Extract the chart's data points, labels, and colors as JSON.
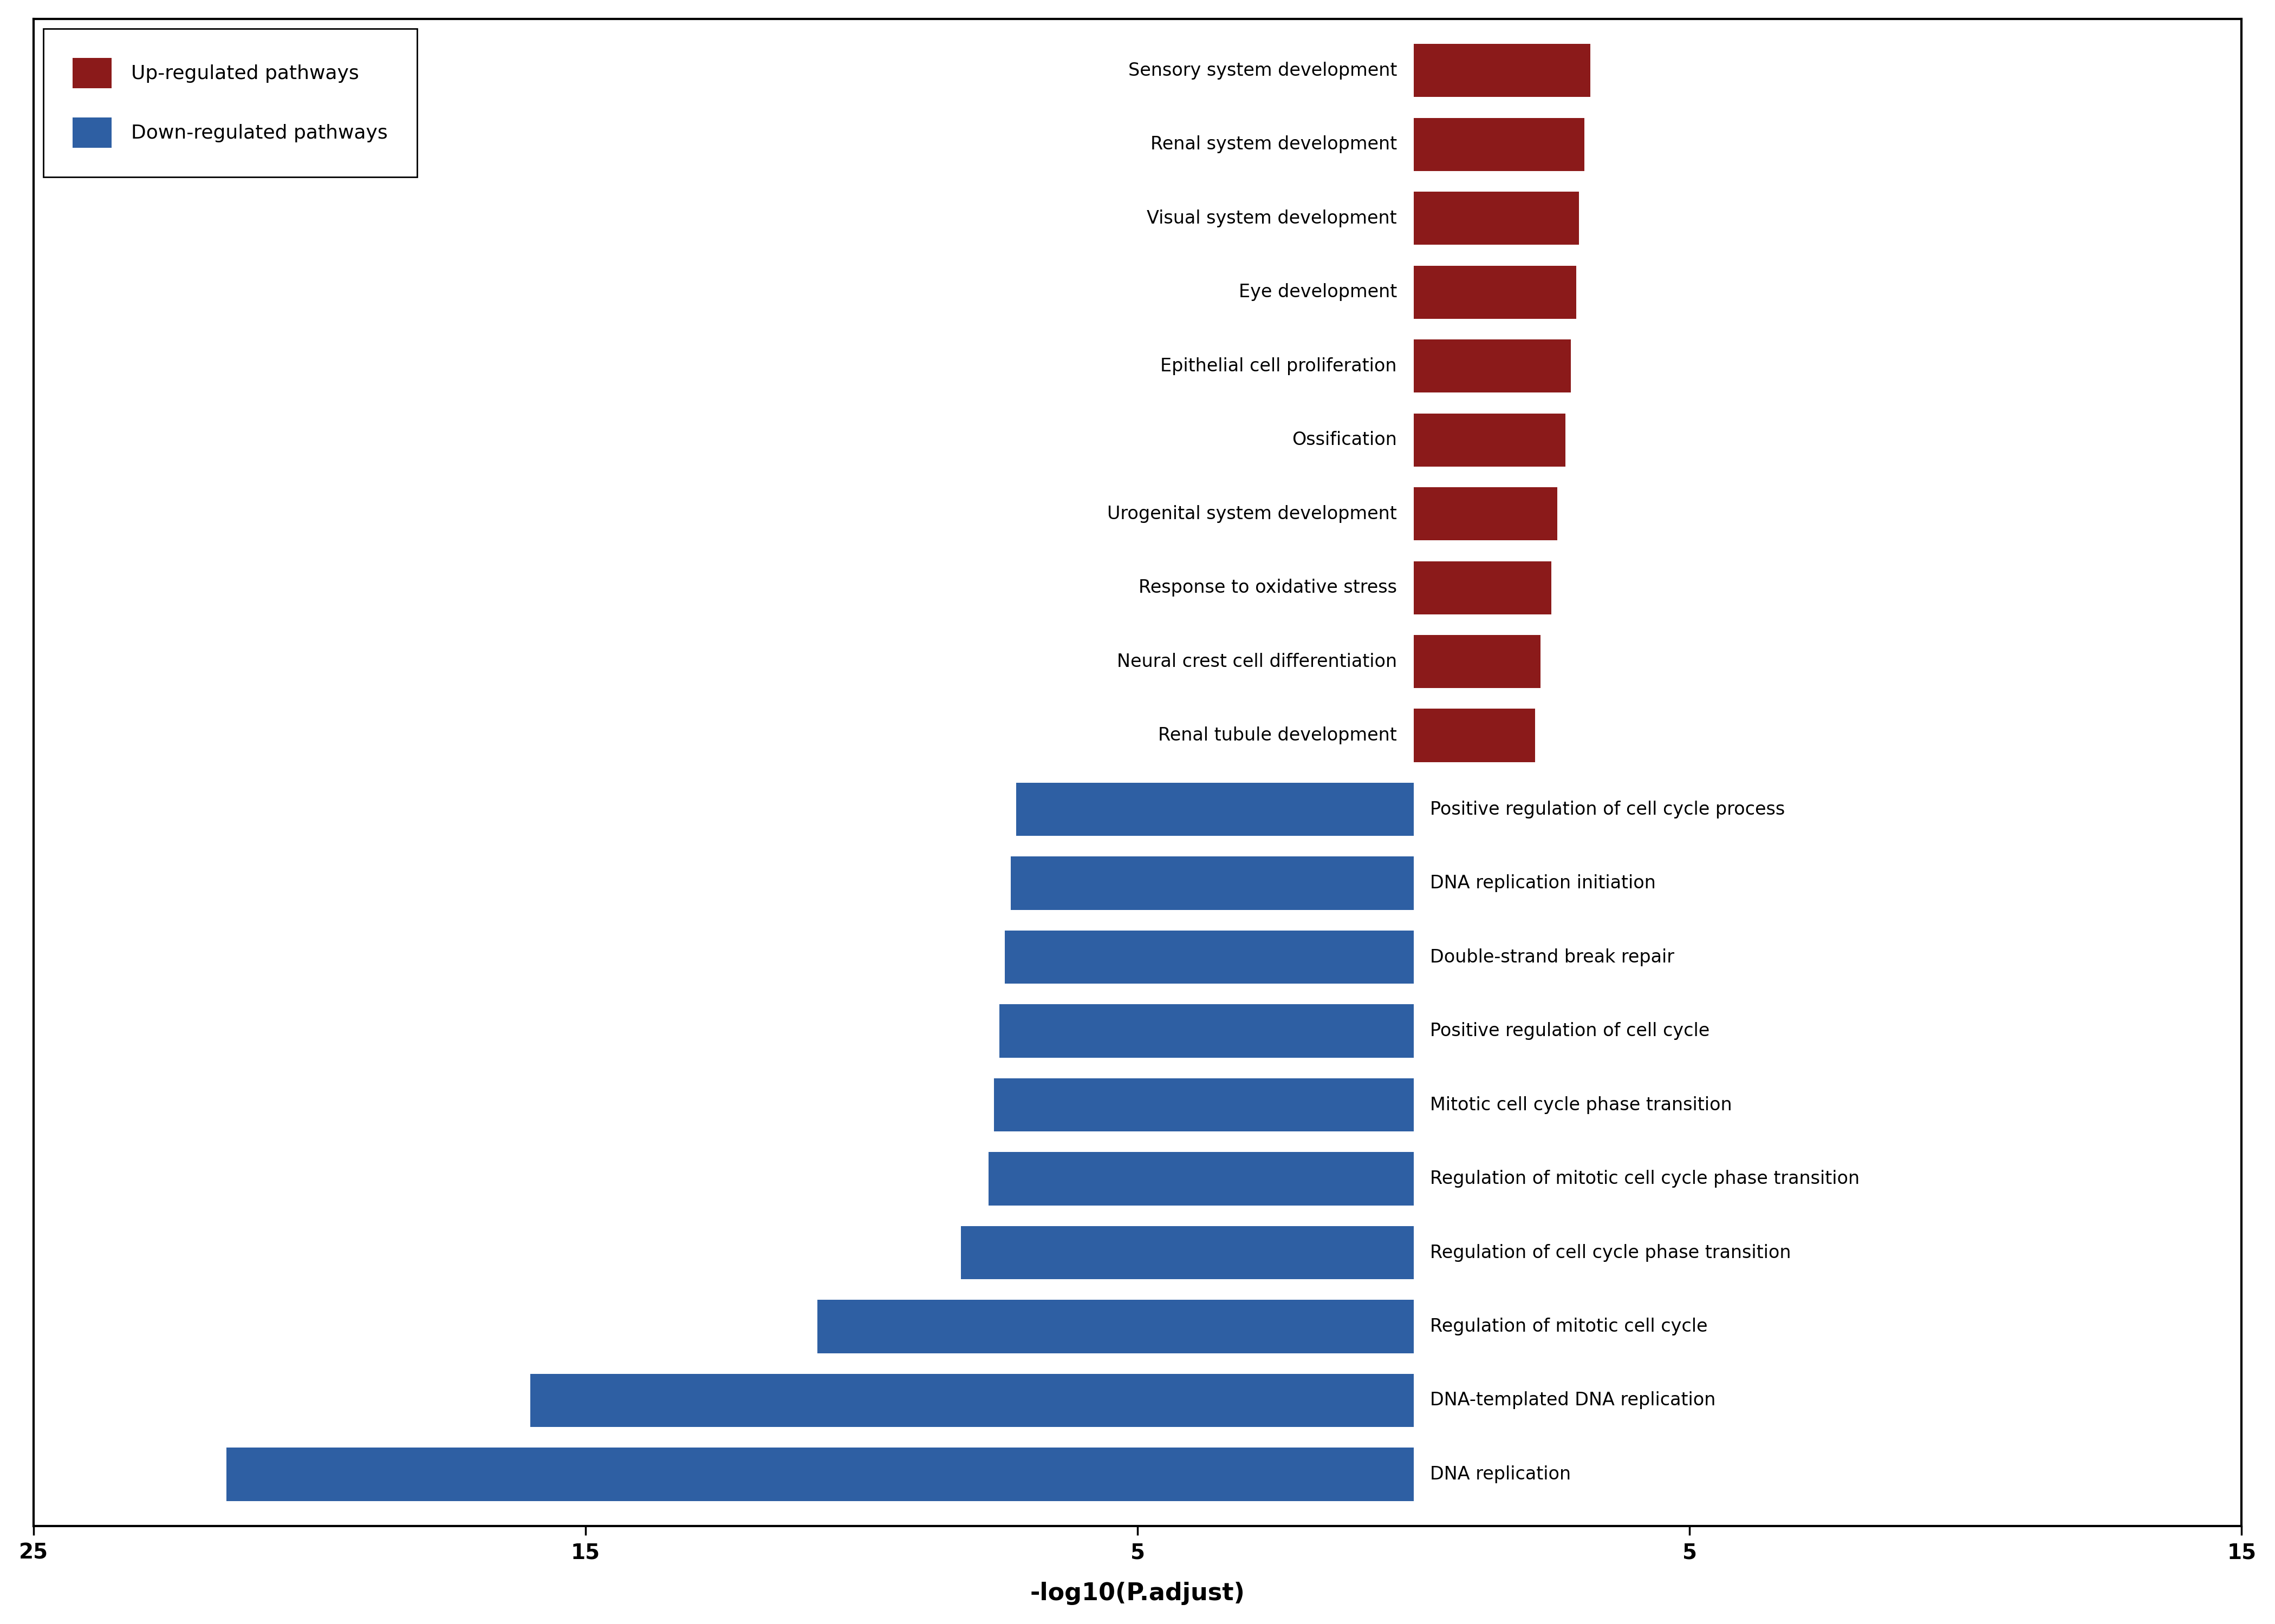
{
  "up_regulated": {
    "labels": [
      "Sensory system development",
      "Renal system development",
      "Visual system development",
      "Eye development",
      "Epithelial cell proliferation",
      "Ossification",
      "Urogenital system development",
      "Response to oxidative stress",
      "Neural crest cell differentiation",
      "Renal tubule development"
    ],
    "values": [
      3.2,
      3.1,
      3.0,
      2.95,
      2.85,
      2.75,
      2.6,
      2.5,
      2.3,
      2.2
    ]
  },
  "down_regulated": {
    "labels": [
      "Positive regulation of cell cycle process",
      "DNA replication initiation",
      "Double-strand break repair",
      "Positive regulation of cell cycle",
      "Mitotic cell cycle phase transition",
      "Regulation of mitotic cell cycle phase transition",
      "Regulation of cell cycle phase transition",
      "Regulation of mitotic cell cycle",
      "DNA-templated DNA replication",
      "DNA replication"
    ],
    "values": [
      -7.2,
      -7.3,
      -7.4,
      -7.5,
      -7.6,
      -7.7,
      -8.2,
      -10.8,
      -16.0,
      -21.5
    ]
  },
  "up_color": "#8B1A1A",
  "down_color": "#2E5FA3",
  "xlim": [
    -25,
    15
  ],
  "tick_positions": [
    -25,
    -15,
    -5,
    5,
    15
  ],
  "tick_labels": [
    "25",
    "15",
    "5",
    "5",
    "15"
  ],
  "xlabel": "-log10(P.adjust)",
  "legend_up": "Up-regulated pathways",
  "legend_down": "Down-regulated pathways",
  "bar_height": 0.72,
  "background_color": "#ffffff",
  "spine_linewidth": 3.0,
  "label_fontsize": 24,
  "tick_fontsize": 28,
  "xlabel_fontsize": 32,
  "legend_fontsize": 26
}
